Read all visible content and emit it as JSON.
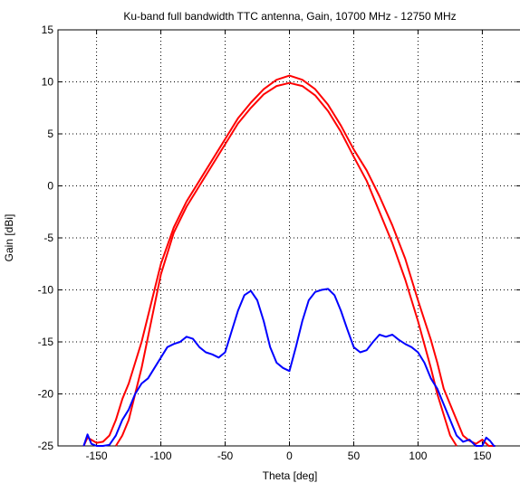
{
  "chart_data": {
    "type": "line",
    "title": "Ku-band full bandwidth TTC antenna, Gain, 10700 MHz - 12750 MHz",
    "xlabel": "Theta [deg]",
    "ylabel": "Gain [dBi]",
    "xlim": [
      -180,
      180
    ],
    "ylim": [
      -25,
      15
    ],
    "xticks": [
      -150,
      -100,
      -50,
      0,
      50,
      100,
      150
    ],
    "yticks": [
      -25,
      -20,
      -15,
      -10,
      -5,
      0,
      5,
      10,
      15
    ],
    "grid": true,
    "legend": "none",
    "series": [
      {
        "color": "#ff0000",
        "x": [
          -160,
          -157,
          -150,
          -145,
          -140,
          -135,
          -130,
          -125,
          -120,
          -115,
          -110,
          -105,
          -100,
          -90,
          -80,
          -70,
          -60,
          -50,
          -40,
          -30,
          -20,
          -10,
          0,
          10,
          20,
          30,
          40,
          50,
          60,
          70,
          80,
          90,
          100,
          110,
          115,
          120,
          125,
          130,
          135,
          140,
          145,
          150,
          155,
          160
        ],
        "y": [
          -25,
          -24.2,
          -24.7,
          -24.6,
          -24,
          -22.5,
          -20.5,
          -19,
          -17,
          -15,
          -12.5,
          -10,
          -7.5,
          -4,
          -1.5,
          0.5,
          2.5,
          4.5,
          6.5,
          8,
          9.3,
          10.2,
          10.6,
          10.2,
          9.3,
          7.8,
          5.8,
          3.5,
          1.5,
          -1,
          -3.8,
          -7,
          -11,
          -14.8,
          -17,
          -19.5,
          -21,
          -22.5,
          -24,
          -24.5,
          -24.8,
          -24.4,
          -25,
          -25
        ]
      },
      {
        "color": "#ff0000",
        "x": [
          -135,
          -130,
          -125,
          -120,
          -115,
          -110,
          -105,
          -100,
          -90,
          -80,
          -70,
          -60,
          -50,
          -40,
          -30,
          -20,
          -10,
          0,
          10,
          20,
          30,
          40,
          50,
          60,
          70,
          80,
          90,
          100,
          110,
          115,
          120,
          125,
          130
        ],
        "y": [
          -25,
          -24,
          -22.5,
          -20,
          -17.5,
          -14.5,
          -11.5,
          -8.5,
          -4.5,
          -2,
          0,
          2,
          4,
          6,
          7.5,
          8.8,
          9.6,
          9.9,
          9.6,
          8.7,
          7.2,
          5.2,
          2.8,
          0.5,
          -2.5,
          -5.5,
          -9,
          -13,
          -17.5,
          -20,
          -22,
          -24,
          -25
        ]
      },
      {
        "color": "#0000ff",
        "x": [
          -160,
          -157,
          -154,
          -150,
          -145,
          -140,
          -135,
          -130,
          -125,
          -120,
          -115,
          -110,
          -105,
          -100,
          -95,
          -90,
          -85,
          -80,
          -75,
          -70,
          -65,
          -60,
          -55,
          -50,
          -45,
          -40,
          -35,
          -30,
          -25,
          -20,
          -15,
          -10,
          -5,
          0,
          5,
          10,
          15,
          20,
          25,
          30,
          35,
          40,
          45,
          50,
          55,
          60,
          65,
          70,
          75,
          80,
          85,
          90,
          95,
          100,
          105,
          110,
          115,
          120,
          125,
          130,
          135,
          140,
          145,
          150,
          153,
          156,
          159,
          160
        ],
        "y": [
          -25,
          -23.9,
          -24.8,
          -25,
          -25,
          -24.9,
          -24,
          -22.5,
          -21.5,
          -20,
          -19,
          -18.5,
          -17.5,
          -16.5,
          -15.5,
          -15.2,
          -15,
          -14.5,
          -14.7,
          -15.5,
          -16,
          -16.2,
          -16.5,
          -16,
          -14,
          -12,
          -10.5,
          -10.1,
          -11,
          -13,
          -15.5,
          -17,
          -17.5,
          -17.8,
          -15.5,
          -13,
          -11,
          -10.2,
          -10,
          -9.9,
          -10.5,
          -12,
          -13.8,
          -15.5,
          -16,
          -15.8,
          -15,
          -14.3,
          -14.5,
          -14.3,
          -14.8,
          -15.2,
          -15.5,
          -16,
          -17,
          -18.5,
          -19.5,
          -21,
          -22.5,
          -24,
          -24.6,
          -24.4,
          -25,
          -25,
          -24.2,
          -24.5,
          -25,
          -25
        ]
      }
    ]
  }
}
